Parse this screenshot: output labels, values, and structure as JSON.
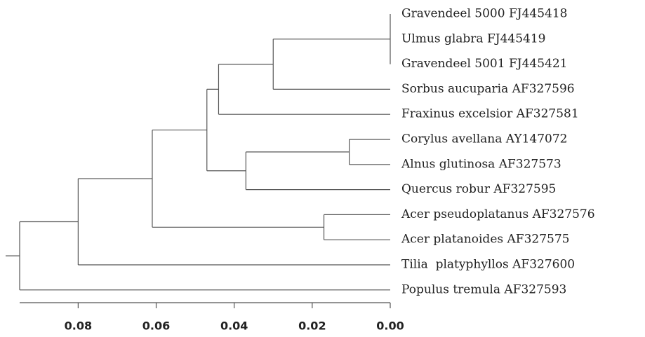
{
  "chart_data": {
    "type": "dendrogram",
    "leaves": [
      "Gravendeel 5000 FJ445418",
      "Ulmus glabra FJ445419",
      "Gravendeel 5001 FJ445421",
      "Sorbus aucuparia AF327596",
      "Fraxinus excelsior AF327581",
      "Corylus avellana AY147072",
      "Alnus glutinosa AF327573",
      "Quercus robur AF327595",
      "Acer pseudoplatanus AF327576",
      "Acer platanoides AF327575",
      "Tilia  platyphyllos AF327600",
      "Populus tremula AF327593"
    ],
    "clusters": [
      {
        "height": 0.0,
        "children": [
          {
            "leaf": 0
          },
          {
            "leaf": 1
          },
          {
            "leaf": 2
          }
        ]
      },
      {
        "height": 0.03,
        "children": [
          {
            "cluster": 0
          },
          {
            "leaf": 3
          }
        ]
      },
      {
        "height": 0.044,
        "children": [
          {
            "cluster": 1
          },
          {
            "leaf": 4
          }
        ]
      },
      {
        "height": 0.0105,
        "children": [
          {
            "leaf": 5
          },
          {
            "leaf": 6
          }
        ]
      },
      {
        "height": 0.037,
        "children": [
          {
            "cluster": 3
          },
          {
            "leaf": 7
          }
        ]
      },
      {
        "height": 0.047,
        "children": [
          {
            "cluster": 2
          },
          {
            "cluster": 4
          }
        ]
      },
      {
        "height": 0.017,
        "children": [
          {
            "leaf": 8
          },
          {
            "leaf": 9
          }
        ]
      },
      {
        "height": 0.061,
        "children": [
          {
            "cluster": 5
          },
          {
            "cluster": 6
          }
        ]
      },
      {
        "height": 0.08,
        "children": [
          {
            "cluster": 7
          },
          {
            "leaf": 10
          }
        ]
      },
      {
        "height": 0.095,
        "children": [
          {
            "cluster": 8
          },
          {
            "leaf": 11
          }
        ]
      }
    ],
    "xlim": [
      0.095,
      0
    ],
    "xticks": [
      {
        "value": 0.08,
        "label": "0.08"
      },
      {
        "value": 0.06,
        "label": "0.06"
      },
      {
        "value": 0.04,
        "label": "0.04"
      },
      {
        "value": 0.02,
        "label": "0.02"
      },
      {
        "value": 0,
        "label": "0.00"
      }
    ]
  }
}
